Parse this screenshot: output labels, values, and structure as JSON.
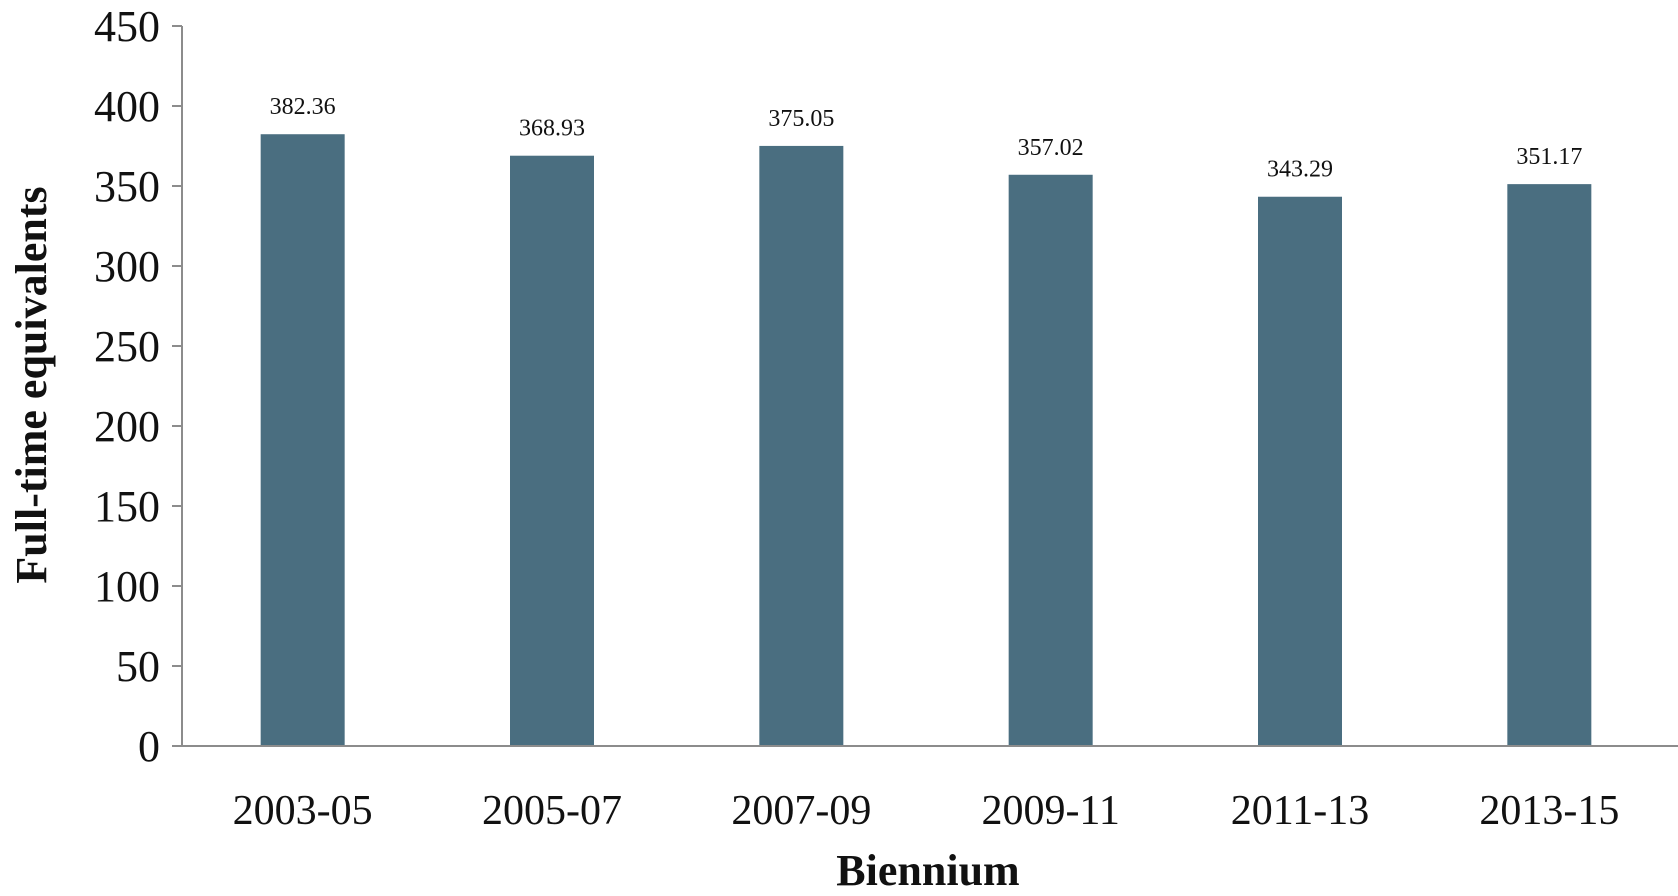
{
  "chart_data": {
    "type": "bar",
    "title": "",
    "xlabel": "Biennium",
    "ylabel": "Full-time equivalents",
    "categories": [
      "2003-05",
      "2005-07",
      "2007-09",
      "2009-11",
      "2011-13",
      "2013-15"
    ],
    "values": [
      382.36,
      368.93,
      375.05,
      357.02,
      343.29,
      351.17
    ],
    "data_labels": [
      "382.36",
      "368.93",
      "375.05",
      "357.02",
      "343.29",
      "351.17"
    ],
    "ylim": [
      0,
      450
    ],
    "y_ticks": [
      0,
      50,
      100,
      150,
      200,
      250,
      300,
      350,
      400,
      450
    ],
    "grid": false,
    "legend": "none",
    "bar_color": "#4a6e80",
    "axis_color": "#8c8c8c"
  }
}
